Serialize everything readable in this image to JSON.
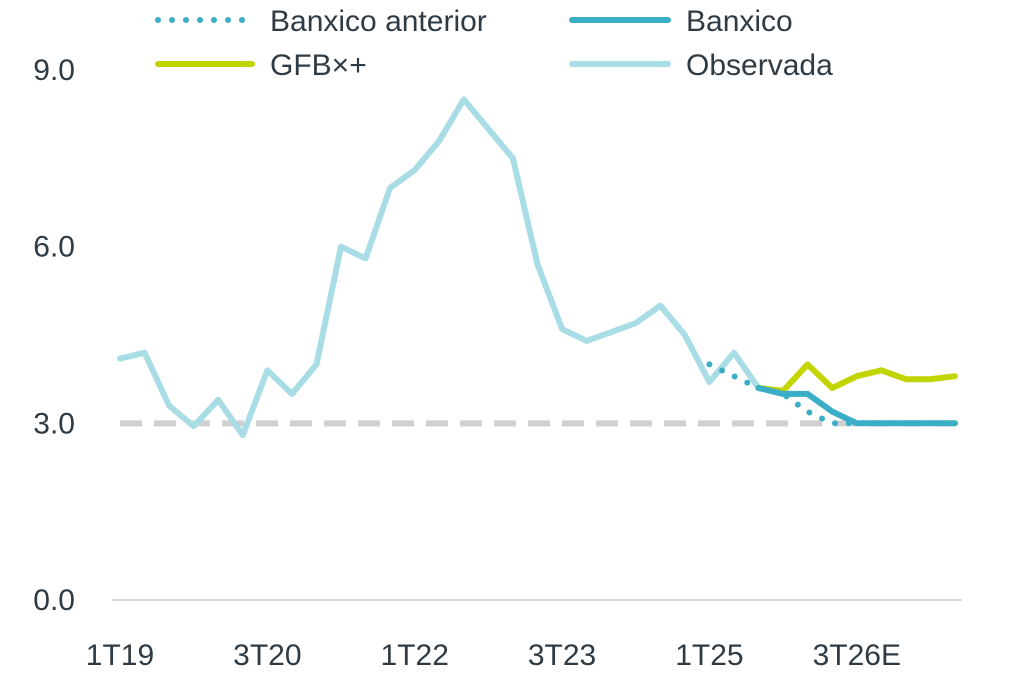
{
  "chart_data": {
    "type": "line",
    "title": "",
    "xlabel": "",
    "ylabel": "",
    "x_tick_labels": [
      "1T19",
      "3T20",
      "1T22",
      "3T23",
      "1T25",
      "3T26E"
    ],
    "y_tick_labels": [
      "0.0",
      "3.0",
      "6.0",
      "9.0"
    ],
    "ylim": [
      0,
      9
    ],
    "grid": false,
    "legend_position": "top",
    "reference_line": {
      "value": 3.0,
      "color": "#d0d0d0",
      "style": "dashed"
    },
    "x": [
      "1T19",
      "2T19",
      "3T19",
      "4T19",
      "1T20",
      "2T20",
      "3T20",
      "4T20",
      "1T21",
      "2T21",
      "3T21",
      "4T21",
      "1T22",
      "2T22",
      "3T22",
      "4T22",
      "1T23",
      "2T23",
      "3T23",
      "4T23",
      "1T24",
      "2T24",
      "3T24",
      "4T24",
      "1T25",
      "2T25",
      "3T25",
      "4T25",
      "1T26",
      "2T26",
      "3T26E",
      "4T26E",
      "1T27E",
      "2T27E",
      "3T27E"
    ],
    "series": [
      {
        "name": "Banxico anterior",
        "color": "#3aaec6",
        "style": "dotted",
        "values": [
          null,
          null,
          null,
          null,
          null,
          null,
          null,
          null,
          null,
          null,
          null,
          null,
          null,
          null,
          null,
          null,
          null,
          null,
          null,
          null,
          null,
          null,
          null,
          null,
          4.0,
          3.8,
          3.6,
          3.5,
          3.2,
          3.0,
          3.0,
          3.0,
          3.0,
          3.0,
          3.0
        ]
      },
      {
        "name": "Banxico",
        "color": "#3aaec6",
        "style": "solid",
        "values": [
          null,
          null,
          null,
          null,
          null,
          null,
          null,
          null,
          null,
          null,
          null,
          null,
          null,
          null,
          null,
          null,
          null,
          null,
          null,
          null,
          null,
          null,
          null,
          null,
          null,
          null,
          3.6,
          3.5,
          3.5,
          3.2,
          3.0,
          3.0,
          3.0,
          3.0,
          3.0
        ]
      },
      {
        "name": "GFB×+",
        "color": "#c2d500",
        "style": "solid",
        "values": [
          null,
          null,
          null,
          null,
          null,
          null,
          null,
          null,
          null,
          null,
          null,
          null,
          null,
          null,
          null,
          null,
          null,
          null,
          null,
          null,
          null,
          null,
          null,
          null,
          null,
          null,
          3.6,
          3.55,
          4.0,
          3.6,
          3.8,
          3.9,
          3.75,
          3.75,
          3.8
        ]
      },
      {
        "name": "Observada",
        "color": "#a8dde6",
        "style": "solid",
        "values": [
          4.1,
          4.2,
          3.3,
          2.95,
          3.4,
          2.8,
          3.9,
          3.5,
          4.0,
          6.0,
          5.8,
          7.0,
          7.3,
          7.8,
          8.5,
          8.0,
          7.5,
          5.7,
          4.6,
          4.4,
          4.55,
          4.7,
          5.0,
          4.5,
          3.7,
          4.2,
          3.6,
          null,
          null,
          null,
          null,
          null,
          null,
          null,
          null
        ]
      }
    ]
  }
}
